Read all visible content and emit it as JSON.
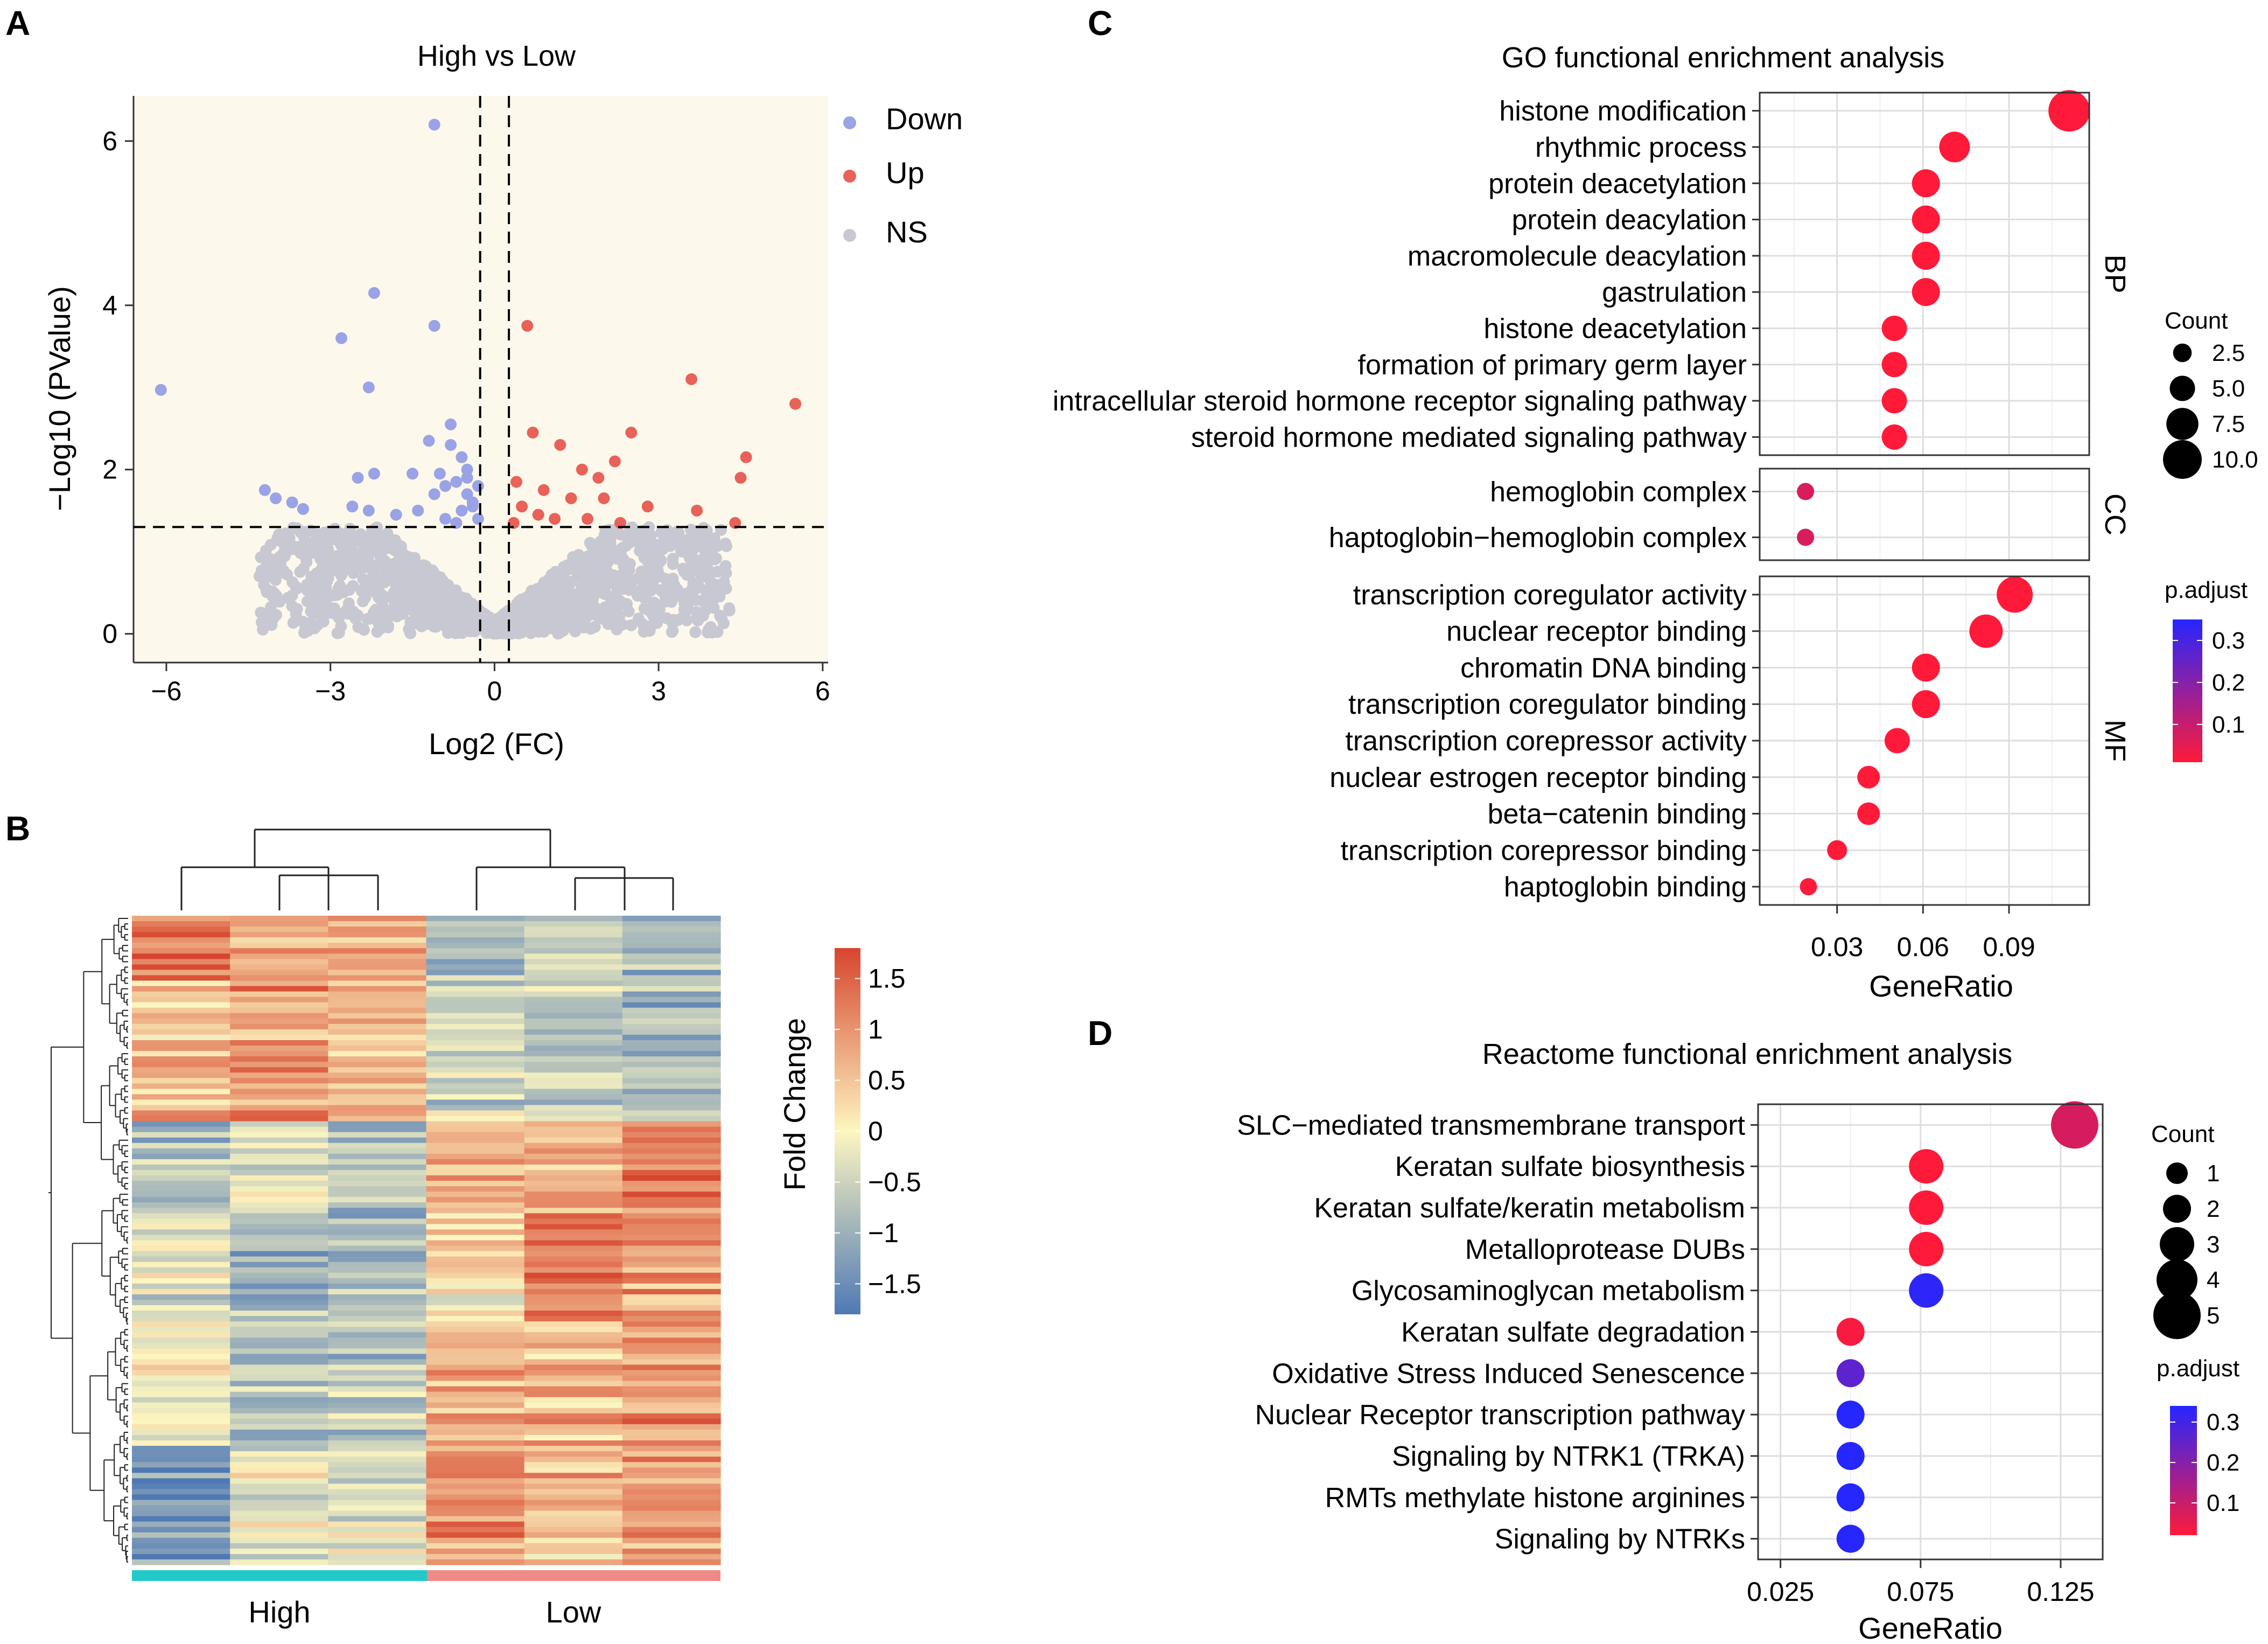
{
  "panel_labels": {
    "a": "A",
    "b": "B",
    "c": "C",
    "d": "D"
  },
  "colors": {
    "down": "#9aa3e6",
    "up": "#e8625a",
    "ns": "#c8c8d2",
    "volcano_bg": "#fdf8ec",
    "heat_low": "#4f79b5",
    "heat_mid": "#fdf6c0",
    "heat_high": "#d7452e",
    "padj_low": "#ff1a3a",
    "padj_high": "#2626ff",
    "group_high": "#22c9c9",
    "group_low": "#f08a86"
  },
  "chart_data": [
    {
      "id": "volcano",
      "type": "scatter",
      "title": "High vs Low",
      "xlabel": "Log2 (FC)",
      "ylabel": "−Log10 (PValue)",
      "xlim": [
        -6.6,
        6.1
      ],
      "ylim": [
        -0.35,
        6.55
      ],
      "xticks": [
        -6,
        -3,
        0,
        3,
        6
      ],
      "yticks": [
        0,
        2,
        4,
        6
      ],
      "thresholds": {
        "logfc": [
          -0.263,
          0.263
        ],
        "neglog10p": 1.3
      },
      "legend": {
        "position": "right",
        "entries": [
          "Down",
          "Up",
          "NS"
        ]
      },
      "series": [
        {
          "name": "Down",
          "x": [
            -1.1,
            -2.2,
            -1.1,
            -2.8,
            -2.3,
            -6.1,
            -1.2,
            -0.8,
            -0.8,
            -0.6,
            -0.5,
            -1.0,
            -1.5,
            -2.2,
            -2.5,
            -4.2,
            -4.0,
            -3.7,
            -3.5,
            -2.6,
            -2.3,
            -1.8,
            -1.4,
            -1.1,
            -0.9,
            -0.7,
            -0.5,
            -0.4,
            -0.3,
            -0.6,
            -0.9,
            -0.3,
            -0.4,
            -0.7,
            -0.5
          ],
          "y": [
            6.2,
            4.15,
            3.75,
            3.6,
            3.0,
            2.97,
            2.35,
            2.55,
            2.3,
            2.15,
            2.0,
            1.95,
            1.95,
            1.95,
            1.9,
            1.75,
            1.65,
            1.6,
            1.52,
            1.55,
            1.5,
            1.45,
            1.5,
            1.7,
            1.8,
            1.85,
            1.7,
            1.6,
            1.4,
            1.5,
            1.4,
            1.8,
            1.55,
            1.35,
            1.9
          ]
        },
        {
          "name": "Up",
          "x": [
            0.6,
            3.6,
            5.5,
            4.6,
            4.5,
            0.7,
            1.2,
            2.5,
            1.6,
            2.2,
            0.4,
            0.9,
            1.4,
            2.0,
            2.8,
            3.7,
            4.4,
            0.5,
            0.8,
            1.1,
            1.7,
            2.3,
            0.35,
            1.9
          ],
          "y": [
            3.75,
            3.1,
            2.8,
            2.15,
            1.9,
            2.45,
            2.3,
            2.45,
            2.0,
            2.1,
            1.85,
            1.75,
            1.65,
            1.65,
            1.55,
            1.5,
            1.35,
            1.55,
            1.45,
            1.4,
            1.4,
            1.35,
            1.35,
            1.9
          ]
        },
        {
          "name": "NS",
          "x": [],
          "y": []
        }
      ]
    },
    {
      "id": "heatmap",
      "type": "heatmap",
      "colorbar_title": "Fold Change",
      "colorbar_ticks": [
        "1.5",
        "1",
        "0.5",
        "0",
        "−0.5",
        "−1",
        "−1.5"
      ],
      "colorbar_range": [
        -1.8,
        1.8
      ],
      "groups": [
        "High",
        "Low"
      ],
      "columns": 6,
      "rows": 120
    },
    {
      "id": "go",
      "type": "scatter",
      "title": "GO functional enrichment analysis",
      "xlabel": "GeneRatio",
      "xticks": [
        "0.03",
        "0.06",
        "0.09"
      ],
      "xlim": [
        0.003,
        0.118
      ],
      "facets": [
        {
          "name": "BP",
          "terms": [
            "histone modification",
            "rhythmic process",
            "protein deacetylation",
            "protein deacylation",
            "macromolecule deacylation",
            "gastrulation",
            "histone deacetylation",
            "formation of primary germ layer",
            "intracellular steroid hormone receptor signaling pathway",
            "steroid hormone mediated signaling pathway"
          ],
          "gene_ratio": [
            0.111,
            0.071,
            0.061,
            0.061,
            0.061,
            0.061,
            0.05,
            0.05,
            0.05,
            0.05
          ],
          "count": [
            11,
            7,
            6,
            6,
            6,
            6,
            5,
            5,
            5,
            5
          ],
          "p_adjust": [
            0.01,
            0.01,
            0.01,
            0.01,
            0.01,
            0.01,
            0.01,
            0.01,
            0.01,
            0.01
          ]
        },
        {
          "name": "CC",
          "terms": [
            "hemoglobin complex",
            "haptoglobin−hemoglobin complex"
          ],
          "gene_ratio": [
            0.019,
            0.019
          ],
          "count": [
            2,
            2
          ],
          "p_adjust": [
            0.07,
            0.07
          ]
        },
        {
          "name": "MF",
          "terms": [
            "transcription coregulator activity",
            "nuclear receptor binding",
            "chromatin DNA binding",
            "transcription coregulator binding",
            "transcription corepressor activity",
            "nuclear estrogen receptor binding",
            "beta−catenin binding",
            "transcription corepressor binding",
            "haptoglobin binding"
          ],
          "gene_ratio": [
            0.092,
            0.082,
            0.061,
            0.061,
            0.051,
            0.041,
            0.041,
            0.03,
            0.02
          ],
          "count": [
            9,
            8,
            6,
            6,
            5,
            4,
            4,
            3,
            2
          ],
          "p_adjust": [
            0.01,
            0.01,
            0.01,
            0.01,
            0.01,
            0.01,
            0.01,
            0.01,
            0.01
          ]
        }
      ],
      "size_legend": {
        "title": "Count",
        "values": [
          "2.5",
          "5.0",
          "7.5",
          "10.0"
        ]
      },
      "color_legend": {
        "title": "p.adjust",
        "ticks": [
          "0.3",
          "0.2",
          "0.1"
        ],
        "range": [
          0.01,
          0.35
        ]
      }
    },
    {
      "id": "reactome",
      "type": "scatter",
      "title": "Reactome functional enrichment analysis",
      "xlabel": "GeneRatio",
      "xticks": [
        "0.025",
        "0.075",
        "0.125"
      ],
      "xlim": [
        0.017,
        0.14
      ],
      "terms": [
        "SLC−mediated transmembrane transport",
        "Keratan sulfate biosynthesis",
        "Keratan sulfate/keratin metabolism",
        "Metalloprotease DUBs",
        "Glycosaminoglycan metabolism",
        "Keratan sulfate degradation",
        "Oxidative Stress Induced Senescence",
        "Nuclear Receptor transcription pathway",
        "Signaling by NTRK1 (TRKA)",
        "RMTs methylate histone arginines",
        "Signaling by NTRKs"
      ],
      "gene_ratio": [
        0.13,
        0.077,
        0.077,
        0.077,
        0.077,
        0.05,
        0.05,
        0.05,
        0.05,
        0.05,
        0.05
      ],
      "count": [
        5,
        3,
        3,
        3,
        3,
        2,
        2,
        2,
        2,
        2,
        2
      ],
      "p_adjust": [
        0.08,
        0.02,
        0.02,
        0.02,
        0.33,
        0.03,
        0.26,
        0.34,
        0.34,
        0.34,
        0.34
      ],
      "size_legend": {
        "title": "Count",
        "values": [
          "1",
          "2",
          "3",
          "4",
          "5"
        ]
      },
      "color_legend": {
        "title": "p.adjust",
        "ticks": [
          "0.3",
          "0.2",
          "0.1"
        ],
        "range": [
          0.02,
          0.34
        ]
      }
    }
  ]
}
